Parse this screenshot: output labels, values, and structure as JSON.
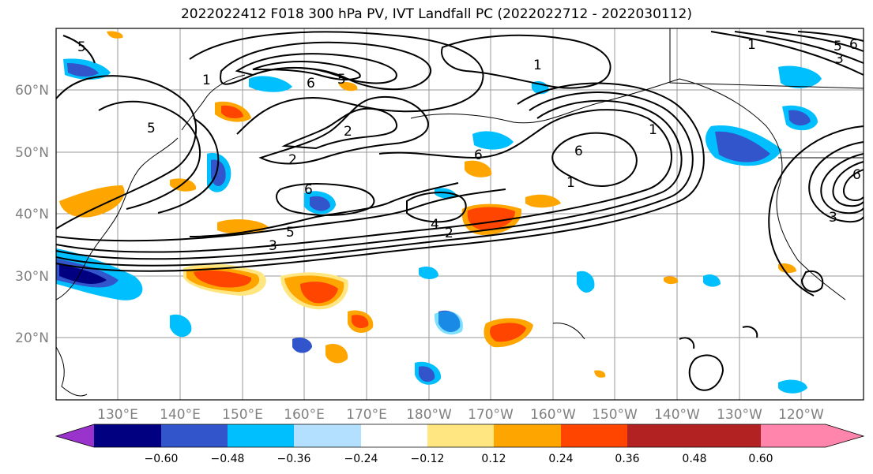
{
  "title": "2022022412 F018 300 hPa PV, IVT Landfall PC (2022022712 - 2022030112)",
  "lon_labels": [
    "130°E",
    "140°E",
    "150°E",
    "160°E",
    "170°E",
    "180°W",
    "170°W",
    "160°W",
    "150°W",
    "140°W",
    "130°W",
    "120°W"
  ],
  "lat_labels": [
    "60°N",
    "50°N",
    "40°N",
    "30°N",
    "20°N"
  ],
  "colorbar": {
    "ticks": [
      "−0.60",
      "−0.48",
      "−0.36",
      "−0.24",
      "−0.12",
      "0.12",
      "0.24",
      "0.36",
      "0.48",
      "0.60"
    ],
    "colors": [
      "#9933cc",
      "#000080",
      "#3355cc",
      "#00bfff",
      "#b3e0ff",
      "#ffffff",
      "#ffe680",
      "#ffa500",
      "#ff4500",
      "#b22222",
      "#ff85ad"
    ]
  },
  "contour_labels": [
    "5",
    "1",
    "5",
    "6",
    "5",
    "2",
    "2",
    "1",
    "6",
    "6",
    "6",
    "4",
    "5",
    "3",
    "2",
    "1",
    "5",
    "6",
    "3",
    "6",
    "3",
    "1",
    "1"
  ]
}
